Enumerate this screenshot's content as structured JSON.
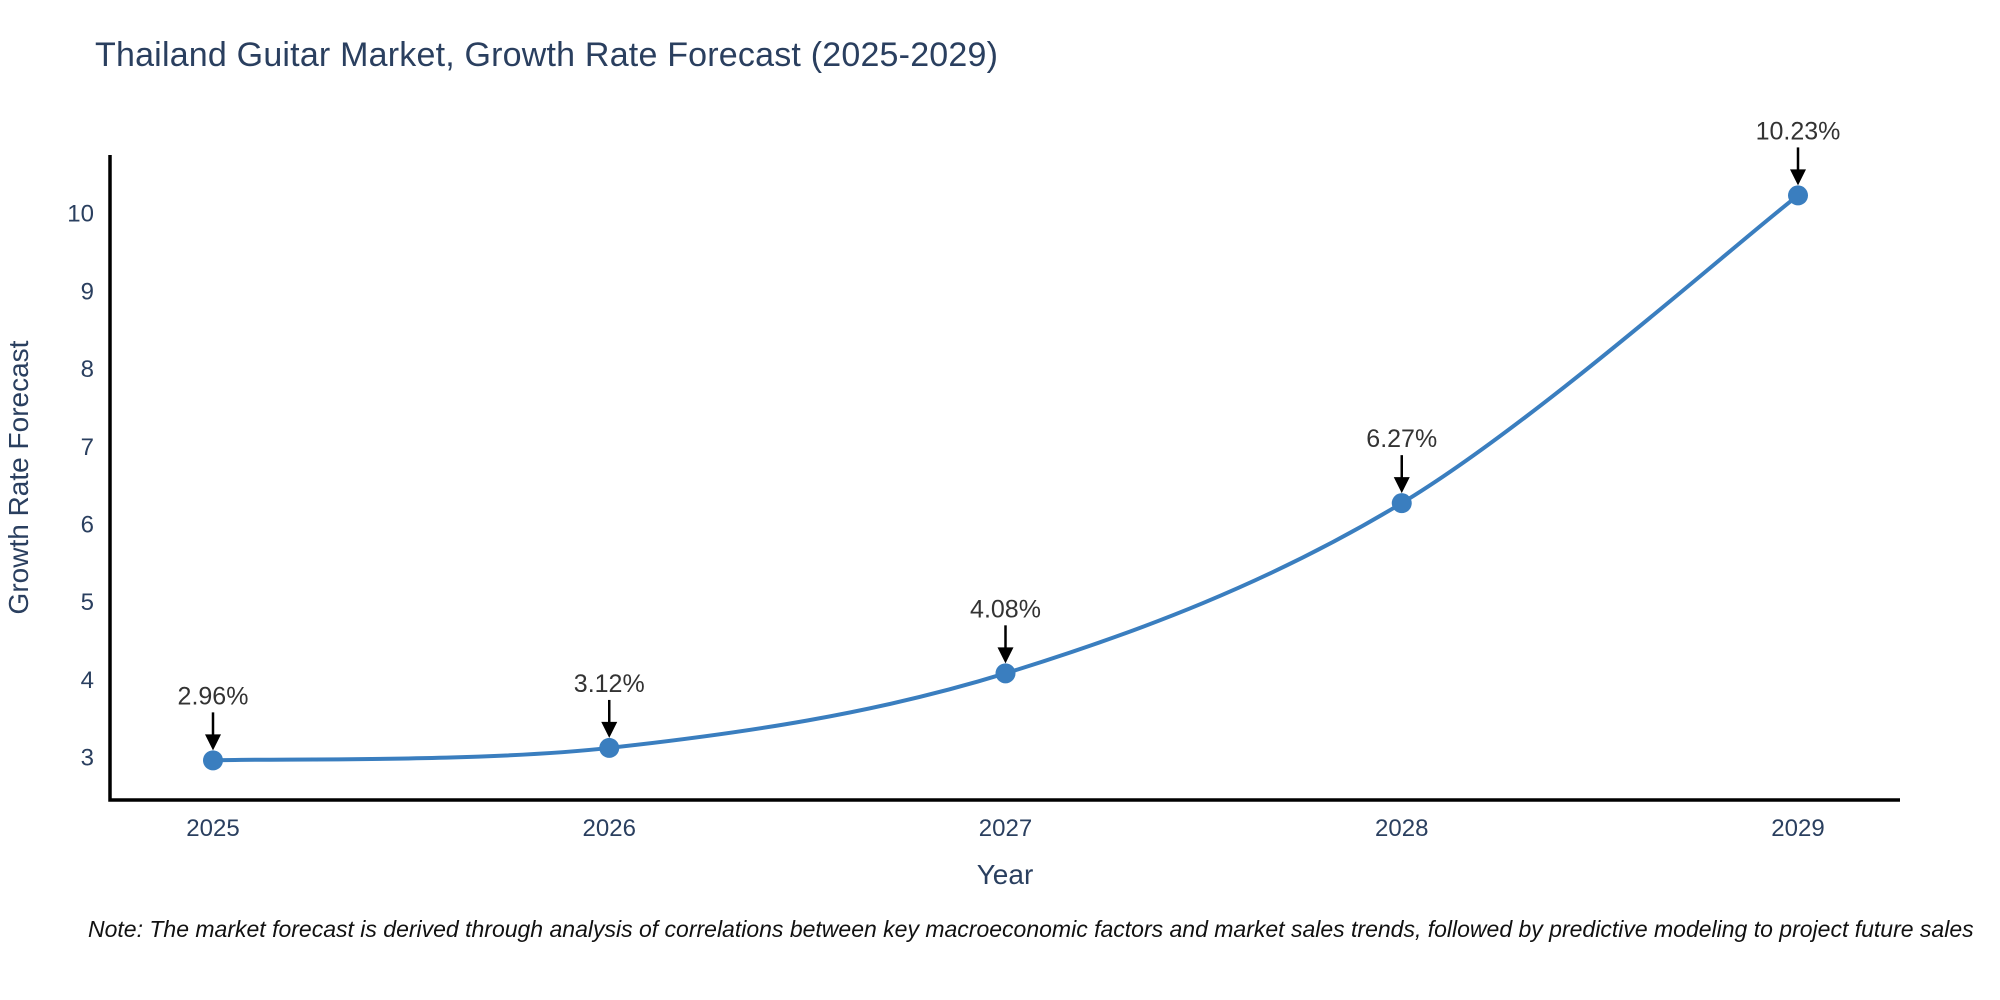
{
  "page": {
    "background": "#ffffff"
  },
  "note": {
    "text": "Note: The market forecast is derived through analysis of correlations between key macroeconomic factors and market sales trends, followed by predictive modeling to project future sales"
  },
  "chart_data": {
    "type": "line",
    "line_shape": "spline",
    "title": "Thailand Guitar Market, Growth Rate Forecast (2025-2029)",
    "xlabel": "Year",
    "ylabel": "Growth Rate Forecast",
    "categories": [
      "2025",
      "2026",
      "2027",
      "2028",
      "2029"
    ],
    "values": [
      2.96,
      3.12,
      4.08,
      6.27,
      10.23
    ],
    "point_labels": [
      "2.96%",
      "3.12%",
      "4.08%",
      "6.27%",
      "10.23%"
    ],
    "yticks": [
      3,
      4,
      5,
      6,
      7,
      8,
      9,
      10
    ],
    "ylim": [
      2.45,
      10.75
    ],
    "grid": false,
    "legend": false,
    "markers": true,
    "annotation_arrow_icon": "down-arrow",
    "colors": {
      "line": "#3a7ebf",
      "marker": "#3a7ebf",
      "axis": "#000000",
      "tick_label": "#2a3f5f",
      "axis_title": "#2a3f5f",
      "title": "#2a3f5f",
      "annotation": "#333333",
      "arrow": "#000000"
    }
  }
}
